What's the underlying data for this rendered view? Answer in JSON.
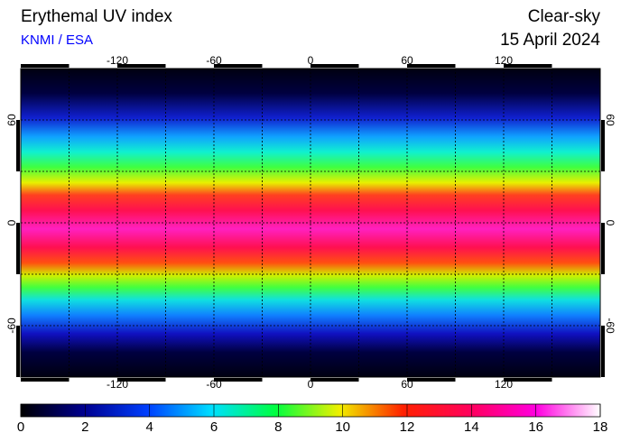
{
  "header": {
    "title": "Erythemal UV index",
    "source": "KNMI / ESA",
    "condition": "Clear-sky",
    "date": "15 April 2024"
  },
  "map": {
    "lon_range": [
      -180,
      180
    ],
    "lat_range": [
      -90,
      90
    ],
    "lon_ticks": [
      -120,
      -60,
      0,
      60,
      120
    ],
    "lat_ticks": [
      60,
      0,
      -60
    ]
  },
  "colorbar": {
    "range": [
      0,
      18
    ],
    "ticks": [
      0,
      2,
      4,
      6,
      8,
      10,
      12,
      14,
      16,
      18
    ]
  }
}
